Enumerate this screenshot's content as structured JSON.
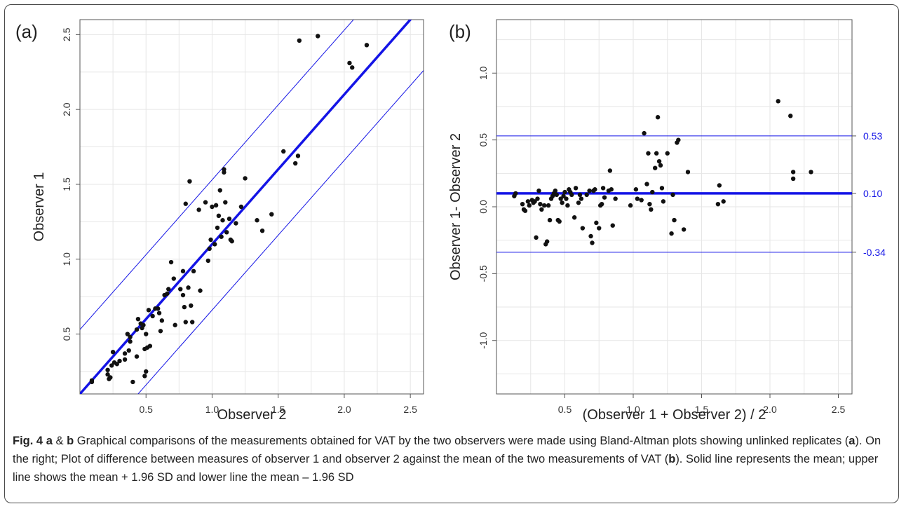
{
  "figure": {
    "caption_lead": "Fig. 4",
    "caption_a": "a",
    "caption_amp": " & ",
    "caption_b": "b",
    "caption_text_1": " Graphical comparisons of the measurements obtained for VAT by the two observers were made using Bland-Altman plots showing unlinked replicates (",
    "caption_text_2": "). On the right; Plot of difference between measures of observer 1 and observer 2 against the mean of the two measurements of VAT (",
    "caption_text_3": "). Solid line represents the mean; upper line shows the mean + 1.96 SD and lower line the mean – 1.96 SD"
  },
  "colors": {
    "line": "#1414e6",
    "points": "#111111",
    "grid": "#e6e6e6",
    "frame": "#555555"
  },
  "chart_data": [
    {
      "type": "scatter",
      "panel_label": "(a)",
      "title": "",
      "xlabel": "Observer 2",
      "ylabel": "Observer 1",
      "xlim": [
        0.0,
        2.6
      ],
      "ylim": [
        0.1,
        2.6
      ],
      "xticks": [
        0.5,
        1.0,
        1.5,
        2.0,
        2.5
      ],
      "xtick_labels": [
        "0.5",
        "1.0",
        "1.5",
        "2.0",
        "2.5"
      ],
      "yticks": [
        0.5,
        1.0,
        1.5,
        2.0,
        2.5
      ],
      "ytick_labels": [
        "0.5",
        "1.0",
        "1.5",
        "2.0",
        "2.5"
      ],
      "grid": true,
      "lines": [
        {
          "name": "mean",
          "intercept": 0.1,
          "slope": 1,
          "style": "thick"
        },
        {
          "name": "upper",
          "intercept": 0.53,
          "slope": 1,
          "style": "thin"
        },
        {
          "name": "lower",
          "intercept": -0.34,
          "slope": 1,
          "style": "thin"
        }
      ],
      "points": [
        [
          0.09,
          0.19
        ],
        [
          0.09,
          0.18
        ],
        [
          0.21,
          0.23
        ],
        [
          0.21,
          0.26
        ],
        [
          0.22,
          0.2
        ],
        [
          0.23,
          0.21
        ],
        [
          0.24,
          0.29
        ],
        [
          0.25,
          0.38
        ],
        [
          0.26,
          0.31
        ],
        [
          0.28,
          0.3
        ],
        [
          0.3,
          0.32
        ],
        [
          0.34,
          0.37
        ],
        [
          0.34,
          0.33
        ],
        [
          0.36,
          0.5
        ],
        [
          0.37,
          0.39
        ],
        [
          0.38,
          0.45
        ],
        [
          0.38,
          0.48
        ],
        [
          0.4,
          0.18
        ],
        [
          0.43,
          0.35
        ],
        [
          0.43,
          0.53
        ],
        [
          0.44,
          0.6
        ],
        [
          0.46,
          0.57
        ],
        [
          0.47,
          0.54
        ],
        [
          0.48,
          0.56
        ],
        [
          0.49,
          0.22
        ],
        [
          0.49,
          0.4
        ],
        [
          0.5,
          0.5
        ],
        [
          0.5,
          0.25
        ],
        [
          0.51,
          0.41
        ],
        [
          0.52,
          0.66
        ],
        [
          0.53,
          0.42
        ],
        [
          0.55,
          0.62
        ],
        [
          0.57,
          0.67
        ],
        [
          0.59,
          0.67
        ],
        [
          0.6,
          0.64
        ],
        [
          0.61,
          0.52
        ],
        [
          0.62,
          0.59
        ],
        [
          0.64,
          0.76
        ],
        [
          0.66,
          0.77
        ],
        [
          0.67,
          0.8
        ],
        [
          0.69,
          0.98
        ],
        [
          0.71,
          0.87
        ],
        [
          0.72,
          0.56
        ],
        [
          0.76,
          0.8
        ],
        [
          0.78,
          0.76
        ],
        [
          0.78,
          0.92
        ],
        [
          0.79,
          0.68
        ],
        [
          0.8,
          0.58
        ],
        [
          0.8,
          1.37
        ],
        [
          0.82,
          0.81
        ],
        [
          0.83,
          1.52
        ],
        [
          0.84,
          0.69
        ],
        [
          0.85,
          0.58
        ],
        [
          0.86,
          0.92
        ],
        [
          0.9,
          1.33
        ],
        [
          0.91,
          0.79
        ],
        [
          0.95,
          1.38
        ],
        [
          0.97,
          0.99
        ],
        [
          0.98,
          1.07
        ],
        [
          0.99,
          1.13
        ],
        [
          1.0,
          1.35
        ],
        [
          1.02,
          1.1
        ],
        [
          1.03,
          1.36
        ],
        [
          1.04,
          1.21
        ],
        [
          1.05,
          1.29
        ],
        [
          1.06,
          1.46
        ],
        [
          1.07,
          1.15
        ],
        [
          1.08,
          1.26
        ],
        [
          1.09,
          1.6
        ],
        [
          1.09,
          1.58
        ],
        [
          1.1,
          1.38
        ],
        [
          1.11,
          1.18
        ],
        [
          1.13,
          1.27
        ],
        [
          1.14,
          1.13
        ],
        [
          1.15,
          1.12
        ],
        [
          1.18,
          1.24
        ],
        [
          1.22,
          1.35
        ],
        [
          1.25,
          1.54
        ],
        [
          1.34,
          1.26
        ],
        [
          1.38,
          1.19
        ],
        [
          1.45,
          1.3
        ],
        [
          1.54,
          1.72
        ],
        [
          1.63,
          1.64
        ],
        [
          1.65,
          1.69
        ],
        [
          1.66,
          2.46
        ],
        [
          1.8,
          2.49
        ],
        [
          2.04,
          2.31
        ],
        [
          2.06,
          2.28
        ],
        [
          2.17,
          2.43
        ]
      ]
    },
    {
      "type": "scatter",
      "panel_label": "(b)",
      "title": "",
      "xlabel": "(Observer 1 + Observer 2) / 2",
      "ylabel": "Observer 1- Observer 2",
      "xlim": [
        0.0,
        2.6
      ],
      "ylim": [
        -1.4,
        1.4
      ],
      "xticks": [
        0.5,
        1.0,
        1.5,
        2.0,
        2.5
      ],
      "xtick_labels": [
        "0.5",
        "1.0",
        "1.5",
        "2.0",
        "2.5"
      ],
      "yticks": [
        -1.0,
        -0.5,
        0.0,
        0.5,
        1.0
      ],
      "ytick_labels": [
        "-1.0",
        "-0.5",
        "0.0",
        "0.5",
        "1.0"
      ],
      "grid": true,
      "hlines": [
        {
          "name": "upper",
          "y": 0.53,
          "label": "0.53",
          "style": "thin"
        },
        {
          "name": "mean",
          "y": 0.1,
          "label": "0.10",
          "style": "thick"
        },
        {
          "name": "lower",
          "y": -0.34,
          "label": "-0.34",
          "style": "thin"
        }
      ],
      "points": [
        [
          0.13,
          0.08
        ],
        [
          0.14,
          0.1
        ],
        [
          0.19,
          0.02
        ],
        [
          0.2,
          -0.02
        ],
        [
          0.21,
          -0.03
        ],
        [
          0.23,
          0.04
        ],
        [
          0.24,
          0.01
        ],
        [
          0.26,
          0.05
        ],
        [
          0.27,
          0.03
        ],
        [
          0.28,
          0.04
        ],
        [
          0.29,
          -0.23
        ],
        [
          0.3,
          0.06
        ],
        [
          0.31,
          0.12
        ],
        [
          0.32,
          0.02
        ],
        [
          0.33,
          -0.02
        ],
        [
          0.35,
          0.01
        ],
        [
          0.36,
          -0.28
        ],
        [
          0.37,
          -0.26
        ],
        [
          0.38,
          0.01
        ],
        [
          0.39,
          -0.1
        ],
        [
          0.4,
          0.06
        ],
        [
          0.41,
          0.08
        ],
        [
          0.42,
          0.1
        ],
        [
          0.43,
          0.12
        ],
        [
          0.44,
          0.09
        ],
        [
          0.45,
          -0.1
        ],
        [
          0.46,
          -0.11
        ],
        [
          0.47,
          0.06
        ],
        [
          0.48,
          0.03
        ],
        [
          0.49,
          0.08
        ],
        [
          0.5,
          0.11
        ],
        [
          0.51,
          0.06
        ],
        [
          0.52,
          0.01
        ],
        [
          0.53,
          0.13
        ],
        [
          0.54,
          0.11
        ],
        [
          0.55,
          0.09
        ],
        [
          0.57,
          -0.08
        ],
        [
          0.58,
          0.14
        ],
        [
          0.6,
          0.03
        ],
        [
          0.61,
          0.09
        ],
        [
          0.62,
          0.06
        ],
        [
          0.63,
          -0.16
        ],
        [
          0.66,
          0.09
        ],
        [
          0.68,
          0.12
        ],
        [
          0.69,
          -0.22
        ],
        [
          0.7,
          -0.27
        ],
        [
          0.71,
          0.12
        ],
        [
          0.72,
          0.13
        ],
        [
          0.73,
          -0.12
        ],
        [
          0.75,
          -0.16
        ],
        [
          0.76,
          0.01
        ],
        [
          0.77,
          0.02
        ],
        [
          0.78,
          0.14
        ],
        [
          0.79,
          0.07
        ],
        [
          0.82,
          0.12
        ],
        [
          0.83,
          0.27
        ],
        [
          0.84,
          0.13
        ],
        [
          0.85,
          -0.14
        ],
        [
          0.87,
          0.06
        ],
        [
          0.98,
          0.01
        ],
        [
          1.02,
          0.13
        ],
        [
          1.03,
          0.06
        ],
        [
          1.06,
          0.05
        ],
        [
          1.08,
          0.55
        ],
        [
          1.1,
          0.17
        ],
        [
          1.11,
          0.4
        ],
        [
          1.12,
          0.02
        ],
        [
          1.13,
          -0.02
        ],
        [
          1.14,
          0.11
        ],
        [
          1.16,
          0.29
        ],
        [
          1.17,
          0.4
        ],
        [
          1.18,
          0.67
        ],
        [
          1.19,
          0.34
        ],
        [
          1.2,
          0.31
        ],
        [
          1.21,
          0.14
        ],
        [
          1.22,
          0.04
        ],
        [
          1.25,
          0.4
        ],
        [
          1.28,
          -0.2
        ],
        [
          1.29,
          0.09
        ],
        [
          1.3,
          -0.1
        ],
        [
          1.32,
          0.48
        ],
        [
          1.33,
          0.5
        ],
        [
          1.37,
          -0.17
        ],
        [
          1.4,
          0.26
        ],
        [
          1.62,
          0.02
        ],
        [
          1.63,
          0.16
        ],
        [
          1.66,
          0.04
        ],
        [
          2.06,
          0.79
        ],
        [
          2.15,
          0.68
        ],
        [
          2.17,
          0.21
        ],
        [
          2.17,
          0.26
        ],
        [
          2.3,
          0.26
        ]
      ]
    }
  ]
}
